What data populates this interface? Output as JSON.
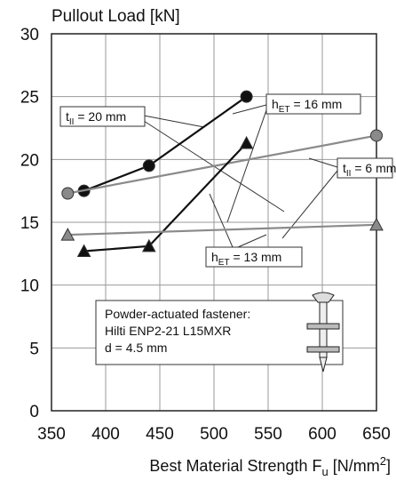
{
  "chart_data": {
    "type": "line",
    "y_label": "Pullout Load [kN]",
    "x_label": {
      "main": "Best Material Strength F",
      "sub": "u",
      "unit": " [N/mm",
      "sup": "2",
      "end": "]"
    },
    "xlim": [
      350,
      650
    ],
    "xticks": [
      350,
      400,
      450,
      500,
      550,
      600,
      650
    ],
    "ylim": [
      0,
      30
    ],
    "yticks": [
      0,
      5,
      10,
      15,
      20,
      25,
      30
    ],
    "grid": true,
    "series": [
      {
        "color": "#111111",
        "marker": "circle",
        "x": [
          380,
          440,
          530
        ],
        "values": [
          17.5,
          19.5,
          25
        ]
      },
      {
        "color": "#8a8a8a",
        "marker": "circle",
        "x": [
          365,
          650
        ],
        "values": [
          17.3,
          21.9
        ]
      },
      {
        "color": "#111111",
        "marker": "triangle",
        "x": [
          380,
          440,
          530
        ],
        "values": [
          12.7,
          13.1,
          21.3
        ]
      },
      {
        "color": "#8a8a8a",
        "marker": "triangle",
        "x": [
          365,
          650
        ],
        "values": [
          14,
          14.8
        ]
      }
    ],
    "annotations": [
      {
        "main": "t",
        "sub": "II",
        "rest": " = 20 mm"
      },
      {
        "main": "h",
        "sub": "ET",
        "rest": " = 16 mm"
      },
      {
        "main": "t",
        "sub": "II",
        "rest": " = 6 mm"
      },
      {
        "main": "h",
        "sub": "ET",
        "rest": " = 13 mm"
      }
    ],
    "note": [
      "Powder-actuated fastener:",
      "Hilti ENP2-21 L15MXR",
      "d = 4.5 mm"
    ]
  }
}
